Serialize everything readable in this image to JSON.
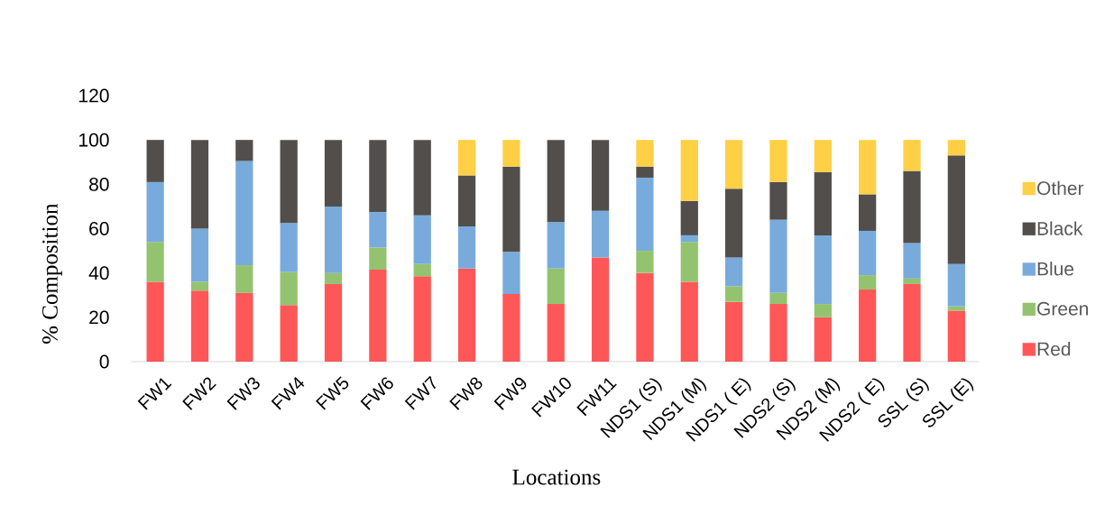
{
  "chart_data": {
    "type": "bar",
    "stacked": true,
    "xlabel": "Locations",
    "ylabel": "% Composition",
    "categories": [
      "FW1",
      "FW2",
      "FW3",
      "FW4",
      "FW5",
      "FW6",
      "FW7",
      "FW8",
      "FW9",
      "FW10",
      "FW11",
      "NDS1 (S)",
      "NDS1 (M)",
      "NDS1 ( E)",
      "NDS2 (S)",
      "NDS2 (M)",
      "NDS2 ( E)",
      "SSL (S)",
      "SSL (E)"
    ],
    "series": [
      {
        "name": "Red",
        "color": "#ff5757",
        "values": [
          36,
          32,
          31,
          25.5,
          35,
          41.5,
          38.5,
          42,
          30.5,
          26,
          47,
          40,
          36,
          27,
          26,
          20,
          32.5,
          35,
          23
        ]
      },
      {
        "name": "Green",
        "color": "#94c36f",
        "values": [
          18,
          4,
          12.5,
          15,
          5,
          10,
          5.5,
          null,
          null,
          16,
          null,
          10,
          18,
          7,
          5,
          6,
          6.5,
          2.5,
          2
        ]
      },
      {
        "name": "Blue",
        "color": "#78abdc",
        "values": [
          27,
          24,
          47,
          22,
          30,
          16,
          22,
          19,
          19,
          21,
          21,
          33,
          3,
          13,
          33,
          31,
          20,
          16,
          19
        ]
      },
      {
        "name": "Black",
        "color": "#524e4c",
        "values": [
          19,
          40,
          9.5,
          37.5,
          30,
          32.5,
          34,
          23,
          38.5,
          37,
          32,
          5,
          15.5,
          31,
          17,
          28.5,
          16.5,
          32.5,
          49
        ]
      },
      {
        "name": "Other",
        "color": "#ffd046",
        "values": [
          null,
          null,
          null,
          null,
          null,
          null,
          null,
          16,
          12,
          null,
          null,
          12,
          27.5,
          22,
          19,
          14.5,
          24.5,
          14,
          7
        ]
      }
    ],
    "ylim": [
      0,
      120
    ],
    "yticks": [
      0,
      20,
      40,
      60,
      80,
      100,
      120
    ],
    "legend": "right"
  }
}
